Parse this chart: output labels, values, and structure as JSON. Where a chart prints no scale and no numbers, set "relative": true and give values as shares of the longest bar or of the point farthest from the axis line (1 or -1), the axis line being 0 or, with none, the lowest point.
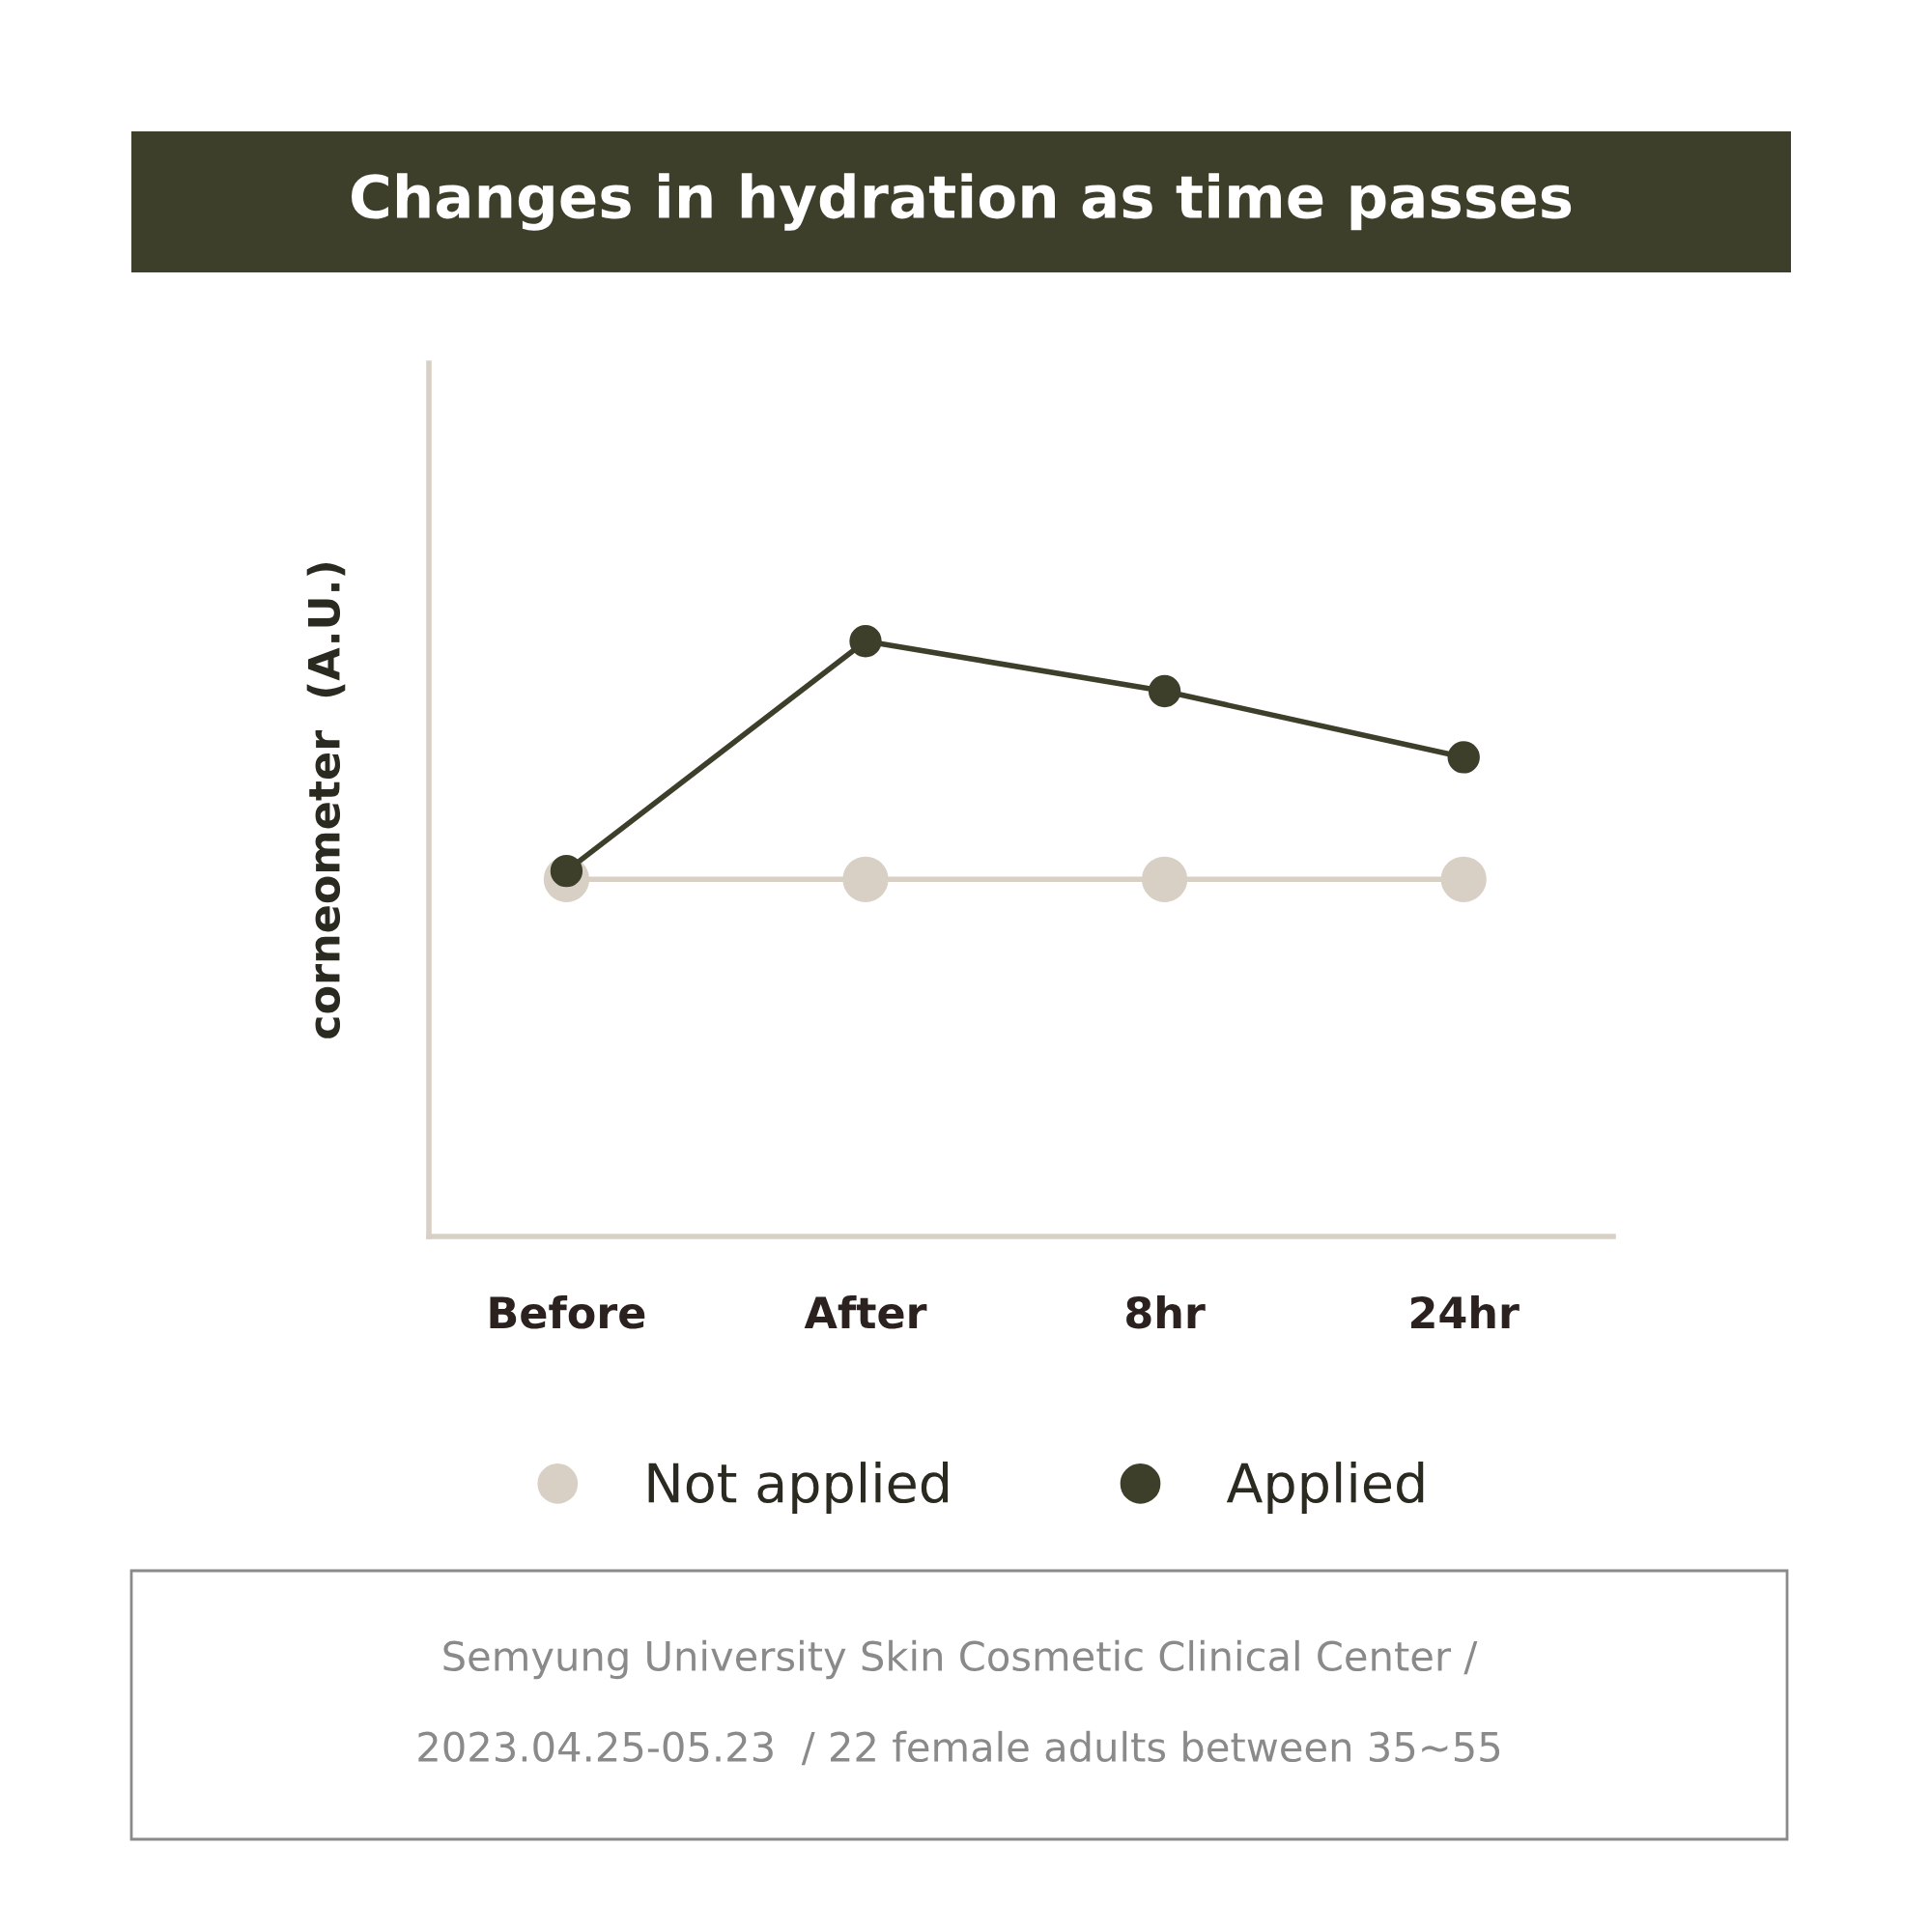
{
  "chart_data": {
    "type": "line",
    "title": "Changes in hydration as time passes",
    "ylabel": "corneometer  (A.U.)",
    "categories": [
      "Before",
      "After",
      "8hr",
      "24hr"
    ],
    "relative": true,
    "marker": "circle",
    "line_style": "solid",
    "legend": "bottom",
    "grid": false,
    "tick_labels": "x",
    "series": [
      {
        "name": "Not applied",
        "color": "#d9d0c5",
        "values": [
          0.6,
          0.6,
          0.6,
          0.6
        ]
      },
      {
        "name": "Applied",
        "color": "#3d3f2a",
        "values": [
          0.614,
          1,
          0.916,
          0.805
        ]
      }
    ],
    "annotations": [
      "Semyung University Skin Cosmetic Clinical Center /",
      "2023.04.25-05.23  / 22 female adults between 35~55"
    ]
  }
}
